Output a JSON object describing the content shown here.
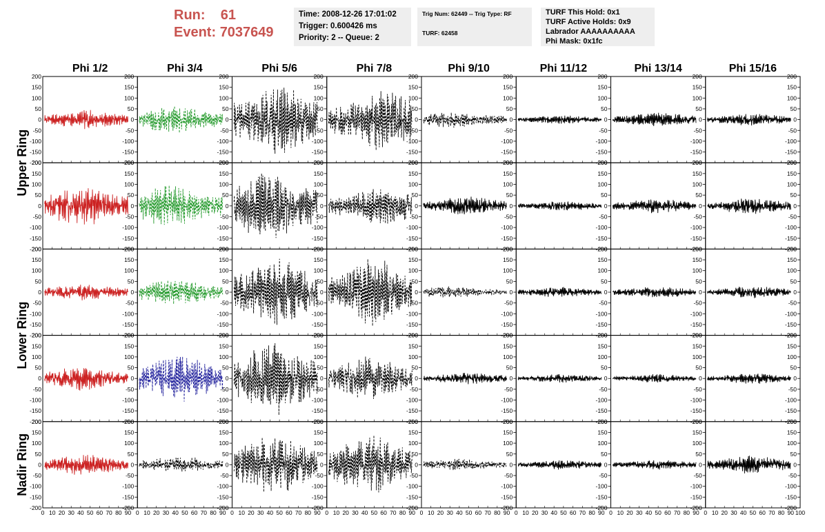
{
  "header": {
    "run_label": "Run:",
    "run_value": "61",
    "event_label": "Event:",
    "event_value": "7037649",
    "accent_color": "#c85450"
  },
  "info": {
    "time": "Time: 2008-12-26 17:01:02",
    "trigger": "Trigger: 0.600426 ms",
    "priority": "Priority: 2 -- Queue: 2",
    "trig_num": "Trig Num: 62449 -- Trig Type: RF",
    "turf": "TURF: 62458",
    "turf_this_hold": "TURF This Hold: 0x1",
    "turf_active_holds": "TURF Active Holds: 0x9",
    "labrador": "Labrador AAAAAAAAAA",
    "phi_mask": "Phi Mask: 0x1fc"
  },
  "chart_data": {
    "type": "line",
    "columns": [
      "Phi 1/2",
      "Phi 3/4",
      "Phi 5/6",
      "Phi 7/8",
      "Phi 9/10",
      "Phi 11/12",
      "Phi 13/14",
      "Phi 15/16"
    ],
    "ring_labels": [
      "Upper Ring",
      "Lower Ring",
      "Nadir Ring"
    ],
    "xlim": [
      0,
      100
    ],
    "ylim": [
      -200,
      200
    ],
    "x_tick_labels": [
      "0",
      "10",
      "20",
      "30",
      "40",
      "50",
      "60",
      "70",
      "80",
      "90",
      "100"
    ],
    "y_tick_labels": [
      "200",
      "150",
      "100",
      "50",
      "0",
      "-50",
      "-100",
      "-150",
      "-200"
    ],
    "series_colors": {
      "red": "#cc2222",
      "green": "#22992a",
      "blue": "#1a1a99",
      "black": "#000000"
    },
    "panels": [
      [
        {
          "color": "red",
          "style": "solid",
          "amp": 40,
          "burst": 45
        },
        {
          "color": "green",
          "style": "dashed",
          "amp": 60,
          "burst": 40
        },
        {
          "color": "black",
          "style": "dashed",
          "amp": 145,
          "burst": 50
        },
        {
          "color": "black",
          "style": "dashed",
          "amp": 130,
          "burst": 60
        },
        {
          "color": "black",
          "style": "dashed",
          "amp": 35,
          "burst": 30
        },
        {
          "color": "black",
          "style": "solid",
          "amp": 18,
          "burst": 50
        },
        {
          "color": "black",
          "style": "solid",
          "amp": 30,
          "burst": 50
        },
        {
          "color": "black",
          "style": "solid",
          "amp": 25,
          "burst": 50
        }
      ],
      [
        {
          "color": "red",
          "style": "solid",
          "amp": 85,
          "burst": 40
        },
        {
          "color": "green",
          "style": "dashed",
          "amp": 90,
          "burst": 35
        },
        {
          "color": "black",
          "style": "dashed",
          "amp": 150,
          "burst": 40
        },
        {
          "color": "black",
          "style": "dashed",
          "amp": 80,
          "burst": 60
        },
        {
          "color": "black",
          "style": "solid",
          "amp": 40,
          "burst": 50
        },
        {
          "color": "black",
          "style": "solid",
          "amp": 20,
          "burst": 50
        },
        {
          "color": "black",
          "style": "solid",
          "amp": 30,
          "burst": 50
        },
        {
          "color": "black",
          "style": "solid",
          "amp": 35,
          "burst": 50
        }
      ],
      [
        {
          "color": "red",
          "style": "solid",
          "amp": 35,
          "burst": 40
        },
        {
          "color": "green",
          "style": "dashed",
          "amp": 55,
          "burst": 40
        },
        {
          "color": "black",
          "style": "dashed",
          "amp": 150,
          "burst": 50
        },
        {
          "color": "black",
          "style": "dashed",
          "amp": 140,
          "burst": 50
        },
        {
          "color": "black",
          "style": "dashed",
          "amp": 25,
          "burst": 30
        },
        {
          "color": "black",
          "style": "solid",
          "amp": 22,
          "burst": 50
        },
        {
          "color": "black",
          "style": "solid",
          "amp": 25,
          "burst": 50
        },
        {
          "color": "black",
          "style": "solid",
          "amp": 25,
          "burst": 50
        }
      ],
      [
        {
          "color": "red",
          "style": "solid",
          "amp": 50,
          "burst": 40
        },
        {
          "color": "blue",
          "style": "dashed",
          "amp": 100,
          "burst": 45
        },
        {
          "color": "black",
          "style": "dashed",
          "amp": 160,
          "burst": 45
        },
        {
          "color": "black",
          "style": "dashed",
          "amp": 90,
          "burst": 45
        },
        {
          "color": "black",
          "style": "solid",
          "amp": 25,
          "burst": 50
        },
        {
          "color": "black",
          "style": "solid",
          "amp": 18,
          "burst": 50
        },
        {
          "color": "black",
          "style": "solid",
          "amp": 18,
          "burst": 50
        },
        {
          "color": "black",
          "style": "solid",
          "amp": 22,
          "burst": 50
        }
      ],
      [
        {
          "color": "red",
          "style": "solid",
          "amp": 45,
          "burst": 45
        },
        {
          "color": "black",
          "style": "dashed",
          "amp": 35,
          "burst": 45
        },
        {
          "color": "black",
          "style": "dashed",
          "amp": 130,
          "burst": 45
        },
        {
          "color": "black",
          "style": "dashed",
          "amp": 130,
          "burst": 45
        },
        {
          "color": "black",
          "style": "dashed",
          "amp": 25,
          "burst": 40
        },
        {
          "color": "black",
          "style": "solid",
          "amp": 20,
          "burst": 50
        },
        {
          "color": "black",
          "style": "solid",
          "amp": 20,
          "burst": 50
        },
        {
          "color": "black",
          "style": "solid",
          "amp": 38,
          "burst": 50
        }
      ]
    ]
  }
}
